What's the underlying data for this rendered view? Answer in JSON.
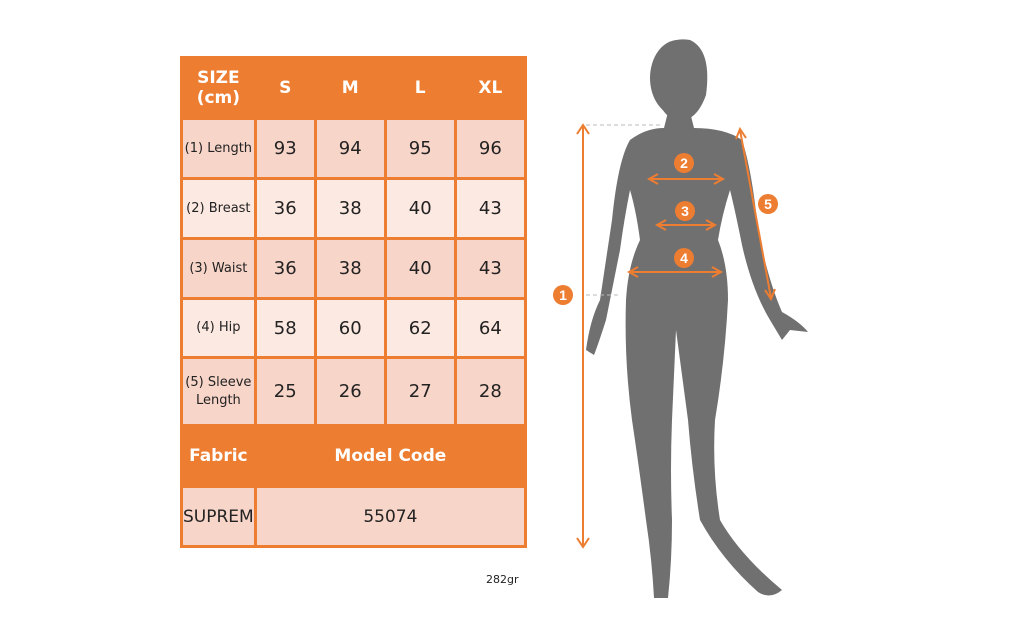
{
  "table": {
    "header": [
      "SIZE (cm)",
      "S",
      "M",
      "L",
      "XL"
    ],
    "rows": [
      {
        "label": "(1) Length",
        "values": [
          "93",
          "94",
          "95",
          "96"
        ]
      },
      {
        "label": "(2) Breast",
        "values": [
          "36",
          "38",
          "40",
          "43"
        ]
      },
      {
        "label": "(3) Waist",
        "values": [
          "36",
          "38",
          "40",
          "43"
        ]
      },
      {
        "label": "(4) Hip",
        "values": [
          "58",
          "60",
          "62",
          "64"
        ]
      },
      {
        "label": "(5) Sleeve Length",
        "values": [
          "25",
          "26",
          "27",
          "28"
        ]
      }
    ],
    "fabric_label": "Fabric",
    "model_code_label": "Model Code",
    "fabric_value": "SUPREM",
    "model_code_value": "55074"
  },
  "weight": "282gr",
  "figure": {
    "markers": [
      "1",
      "2",
      "3",
      "4",
      "5"
    ],
    "accent": "#ED7D31",
    "silhouette": "#707070"
  }
}
